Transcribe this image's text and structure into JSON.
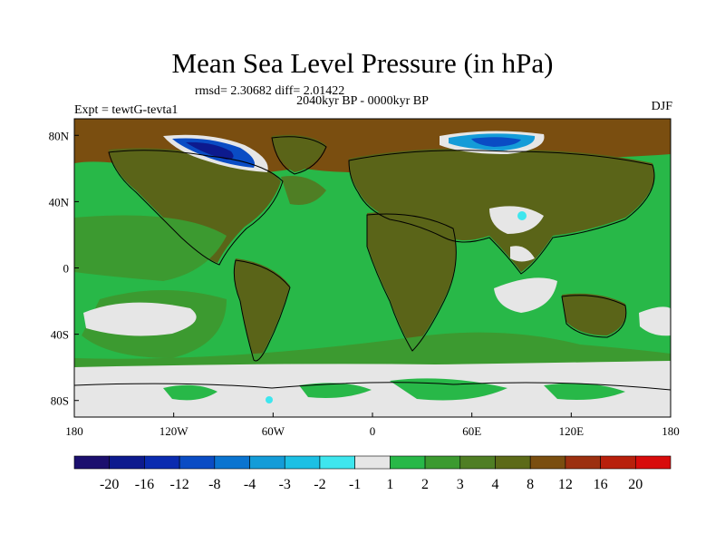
{
  "title": "Mean Sea Level Pressure (in hPa)",
  "stats": "rmsd= 2.30682  diff= 2.01422",
  "left_label": "Expt = tewtG-tevta1",
  "center_label": "2040kyr BP - 0000kyr BP",
  "right_label": "DJF",
  "lat_labels": [
    "80N",
    "40N",
    "0",
    "40S",
    "80S"
  ],
  "lat_values": [
    80,
    40,
    0,
    -40,
    -80
  ],
  "lon_labels": [
    "180",
    "120W",
    "60W",
    "0",
    "60E",
    "120E",
    "180"
  ],
  "lon_values": [
    -180,
    -120,
    -60,
    0,
    60,
    120,
    180
  ],
  "colorbar": {
    "labels": [
      "-20",
      "-16",
      "-12",
      "-8",
      "-4",
      "-3",
      "-2",
      "-1",
      "1",
      "2",
      "3",
      "4",
      "8",
      "12",
      "16",
      "20"
    ],
    "colors": [
      "#1b0f6e",
      "#0d1a8e",
      "#0a2bb0",
      "#0a4cc4",
      "#0a74d0",
      "#149cd8",
      "#1cc0e4",
      "#3ee6ee",
      "#e6e6e6",
      "#28b848",
      "#3c9a30",
      "#4f7e24",
      "#5c6a18",
      "#7a4e10",
      "#9c3010",
      "#b8200c",
      "#d80c0c"
    ]
  },
  "colors": {
    "ocean_base": "#28b848",
    "land": "#5a6418",
    "neutral": "#e6e6e6",
    "mid_green": "#3c9a30",
    "brown": "#7a4e10",
    "deep_blue": "#0a4cc4",
    "light_blue": "#3ee6ee"
  }
}
